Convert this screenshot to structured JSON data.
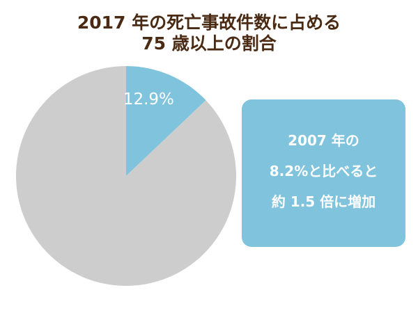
{
  "title": {
    "line1": "2017 年の死亡事故件数に占める",
    "line2": "75 歳以上の割合"
  },
  "callout": {
    "line1": "2007 年の",
    "line2": "8.2%と比べると",
    "line3": "約 1.5 倍に増加"
  },
  "chart_data": {
    "type": "pie",
    "title": "2017 年の死亡事故件数に占める 75 歳以上の割合",
    "slices": [
      {
        "value": 12.9,
        "label": "12.9%",
        "color": "#7fc4dc"
      },
      {
        "value": 87.1,
        "label": "",
        "color": "#cdcdcd"
      }
    ],
    "start_angle": "12 o'clock, clockwise",
    "legend": "none"
  }
}
